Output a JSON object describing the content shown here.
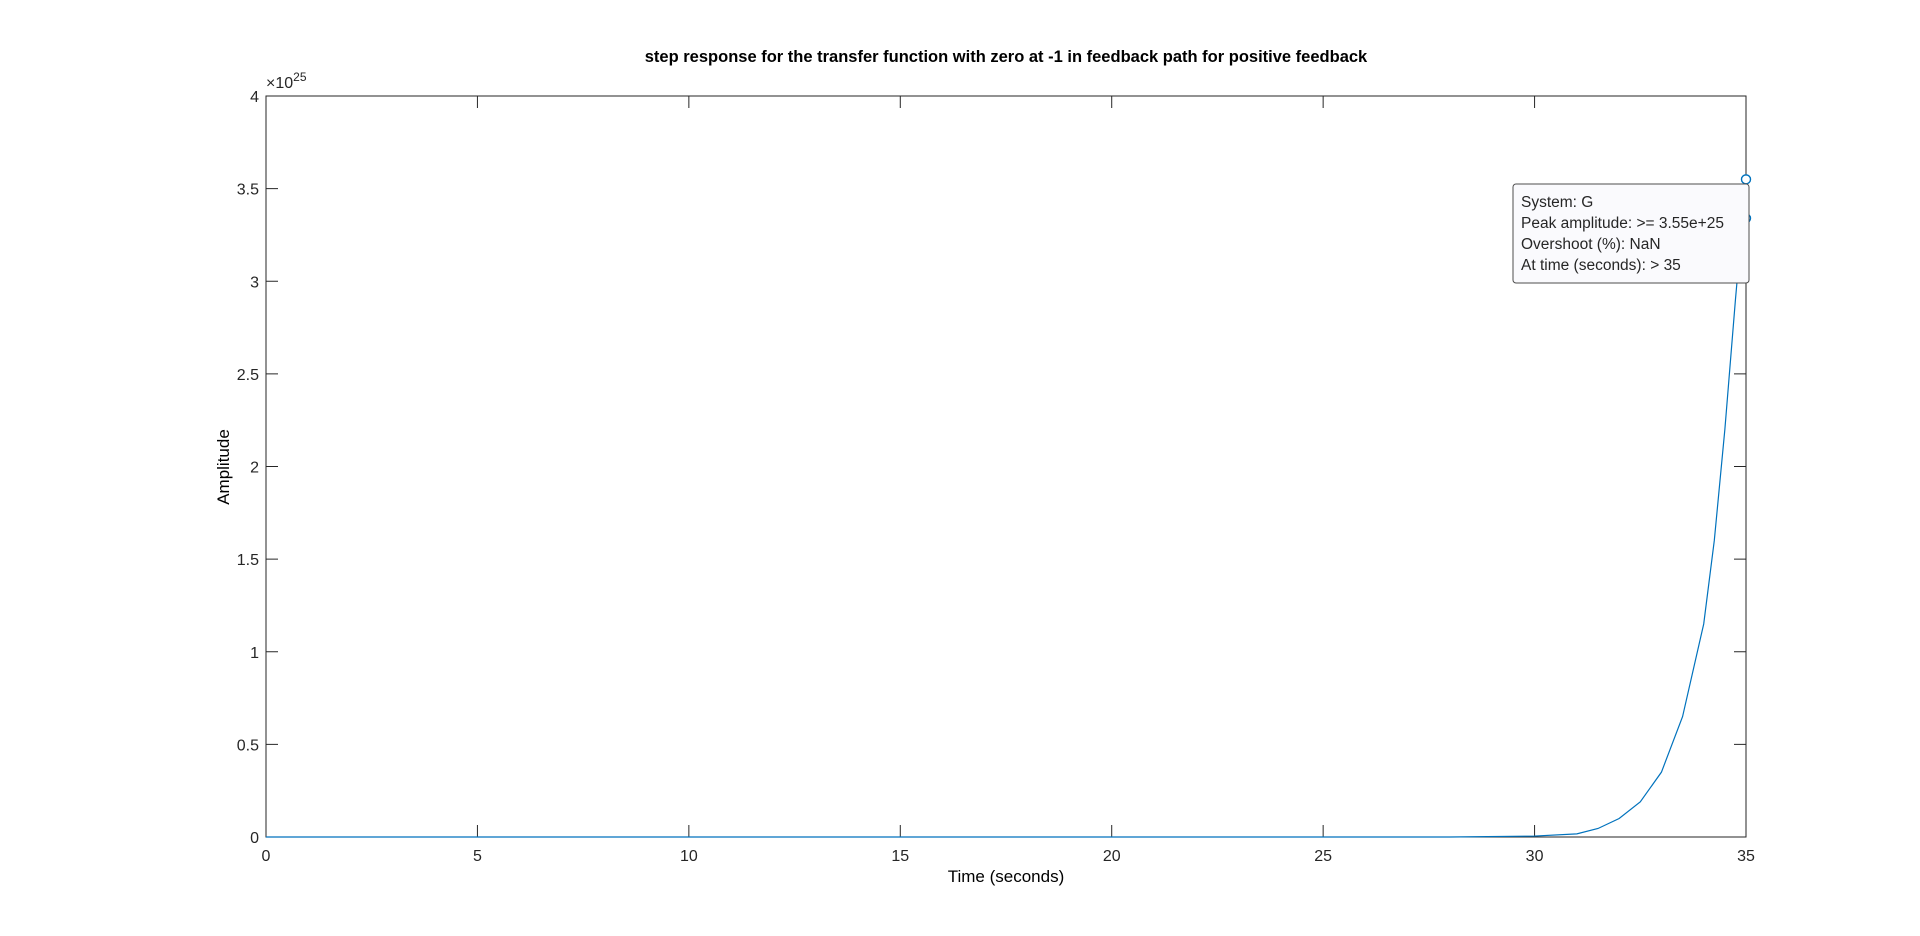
{
  "chart_data": {
    "type": "line",
    "title": "step response for the transfer function with zero at -1 in feedback path for positive feedback",
    "xlabel": "Time (seconds)",
    "ylabel": "Amplitude",
    "xlim": [
      0,
      35
    ],
    "ylim": [
      0,
      4e+25
    ],
    "x_ticks": [
      0,
      5,
      10,
      15,
      20,
      25,
      30,
      35
    ],
    "x_tick_labels": [
      "0",
      "5",
      "10",
      "15",
      "20",
      "25",
      "30",
      "35"
    ],
    "y_ticks": [
      0,
      0.5,
      1,
      1.5,
      2,
      2.5,
      3,
      3.5,
      4
    ],
    "y_tick_labels": [
      "0",
      "0.5",
      "1",
      "1.5",
      "2",
      "2.5",
      "3",
      "3.5",
      "4"
    ],
    "y_exponent": {
      "base": "×10",
      "power": "25"
    },
    "grid": false,
    "series": [
      {
        "name": "G",
        "color": "#0072BD",
        "x": [
          0,
          28,
          30,
          31,
          31.5,
          32,
          32.5,
          33,
          33.5,
          34,
          34.25,
          34.5,
          34.75,
          35
        ],
        "y": [
          0,
          1e+21,
          5e+22,
          1.7e+23,
          4.6e+23,
          1e+24,
          1.9e+24,
          3.5e+24,
          6.5e+24,
          1.15e+25,
          1.6e+25,
          2.2e+25,
          2.9e+25,
          3.55e+25
        ]
      }
    ],
    "markers": [
      {
        "x": 35,
        "y": 3.55e+25
      },
      {
        "x": 35,
        "y": 3.34e+25
      }
    ],
    "datatip": {
      "anchor_x": 35,
      "anchor_y": 3.55e+25,
      "lines": [
        "System: G",
        "Peak amplitude: >= 3.55e+25",
        "Overshoot (%): NaN",
        "At time (seconds): > 35"
      ]
    }
  }
}
